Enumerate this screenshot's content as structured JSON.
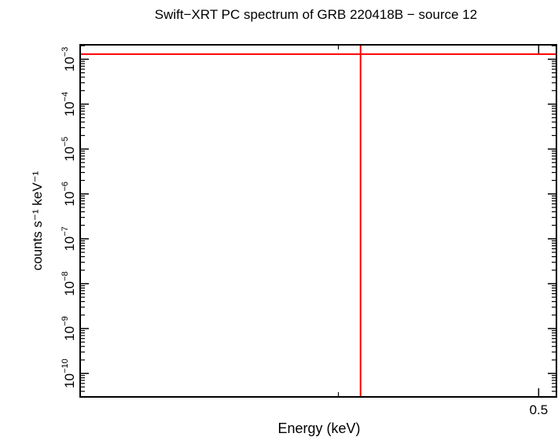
{
  "chart_data": {
    "type": "scatter",
    "title": "Swift−XRT PC spectrum of GRB 220418B − source 12",
    "xlabel": "Energy (keV)",
    "ylabel": "counts s⁻¹ keV⁻¹",
    "x_scale": "log",
    "y_scale": "log",
    "xlim": [
      0.3,
      0.51
    ],
    "ylim": [
      3e-11,
      0.0021
    ],
    "x_major_ticks": [
      {
        "value": 0.5,
        "label": "0.5"
      }
    ],
    "x_minor_ticks": [
      0.4
    ],
    "y_major_ticks": [
      {
        "value": 0.001,
        "mant": "10",
        "exp": "−3"
      },
      {
        "value": 0.0001,
        "mant": "10",
        "exp": "−4"
      },
      {
        "value": 1e-05,
        "mant": "10",
        "exp": "−5"
      },
      {
        "value": 1e-06,
        "mant": "10",
        "exp": "−6"
      },
      {
        "value": 1e-07,
        "mant": "10",
        "exp": "−7"
      },
      {
        "value": 1e-08,
        "mant": "10",
        "exp": "−8"
      },
      {
        "value": 1e-09,
        "mant": "10",
        "exp": "−9"
      },
      {
        "value": 1e-10,
        "mant": "10",
        "exp": "−10"
      }
    ],
    "grid": false,
    "series": [
      {
        "color": "#ff0000",
        "points": [
          {
            "x": 0.41,
            "y": 0.0013,
            "xerr": [
              0.3,
              0.51
            ],
            "yerr": [
              3e-11,
              0.0021
            ]
          }
        ]
      }
    ]
  }
}
